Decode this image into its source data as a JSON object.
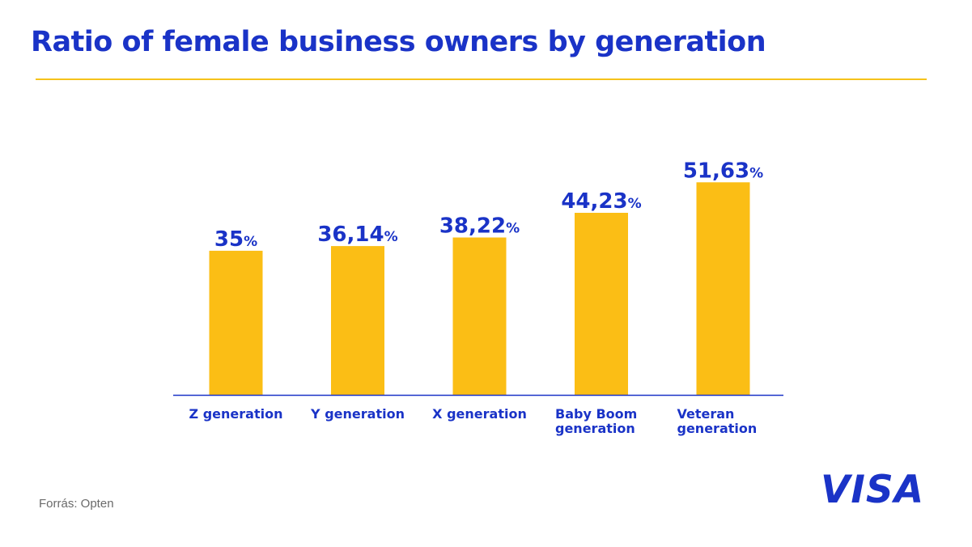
{
  "title": "Ratio of female business owners by generation",
  "source": "Forrás: Opten",
  "brand": "VISA",
  "colors": {
    "primary": "#1a33c7",
    "bar": "#fbbe15",
    "accent_rule": "#f6c21b"
  },
  "chart_data": {
    "type": "bar",
    "title": "Ratio of female business owners by generation",
    "categories": [
      [
        "Z generation"
      ],
      [
        "Y generation"
      ],
      [
        "X generation"
      ],
      [
        "Baby Boom",
        "generation"
      ],
      [
        "Veteran",
        "generation"
      ]
    ],
    "values": [
      35,
      36.14,
      38.22,
      44.23,
      51.63
    ],
    "value_labels": [
      "35",
      "36,14",
      "38,22",
      "44,23",
      "51,63"
    ],
    "unit": "%",
    "xlabel": "",
    "ylabel": "",
    "ylim": [
      0,
      57
    ],
    "grid": false,
    "legend": "none"
  }
}
